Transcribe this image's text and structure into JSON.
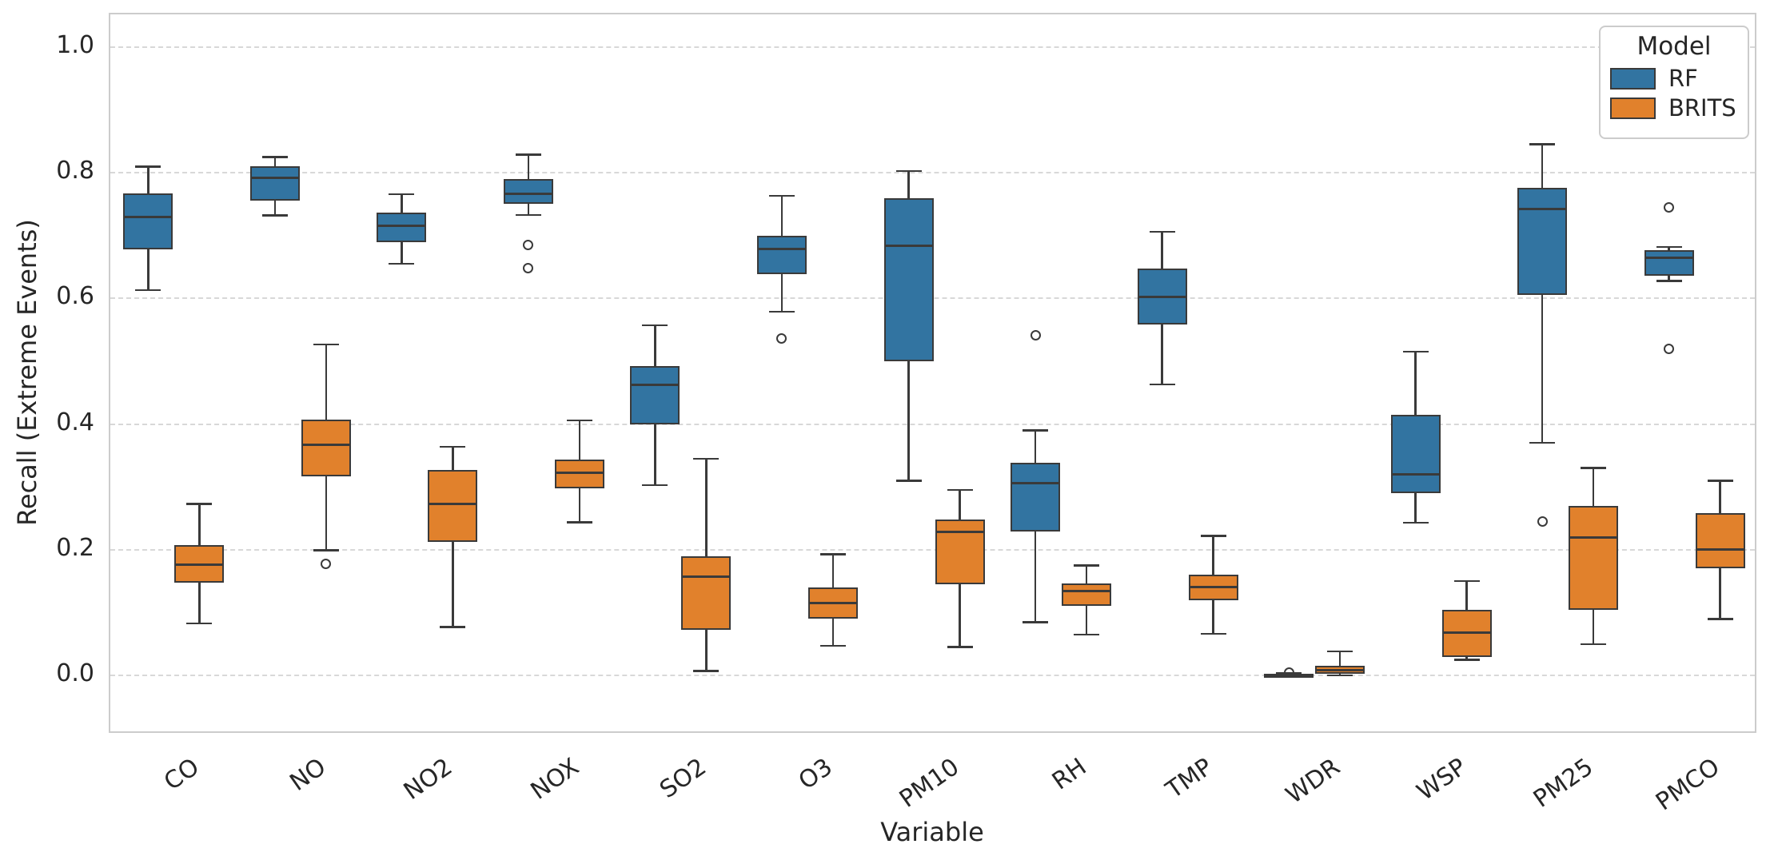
{
  "chart_data": {
    "type": "boxplot",
    "xlabel": "Variable",
    "ylabel": "Recall (Extreme Events)",
    "categories": [
      "CO",
      "NO",
      "NO2",
      "NOX",
      "SO2",
      "O3",
      "PM10",
      "RH",
      "TMP",
      "WDR",
      "WSP",
      "PM25",
      "PMCO"
    ],
    "ytick_values": [
      0.0,
      0.2,
      0.4,
      0.6,
      0.8,
      1.0
    ],
    "ytick_labels": [
      "0.0",
      "0.2",
      "0.4",
      "0.6",
      "0.8",
      "1.0"
    ],
    "ylim": [
      -0.094,
      1.052
    ],
    "grid": "dashed-horizontal",
    "legend": {
      "title": "Model",
      "position": "top-right",
      "entries": [
        {
          "label": "RF",
          "color": "#3274a1"
        },
        {
          "label": "BRITS",
          "color": "#e1812c"
        }
      ]
    },
    "series": [
      {
        "name": "RF",
        "color": "#3274a1",
        "boxes": [
          {
            "category": "CO",
            "whislo": 0.613,
            "q1": 0.678,
            "med": 0.73,
            "q3": 0.767,
            "whishi": 0.81,
            "outliers": []
          },
          {
            "category": "NO",
            "whislo": 0.732,
            "q1": 0.756,
            "med": 0.792,
            "q3": 0.81,
            "whishi": 0.825,
            "outliers": []
          },
          {
            "category": "NO2",
            "whislo": 0.655,
            "q1": 0.69,
            "med": 0.716,
            "q3": 0.737,
            "whishi": 0.766,
            "outliers": []
          },
          {
            "category": "NOX",
            "whislo": 0.733,
            "q1": 0.75,
            "med": 0.766,
            "q3": 0.79,
            "whishi": 0.829,
            "outliers": [
              0.685,
              0.648
            ]
          },
          {
            "category": "SO2",
            "whislo": 0.303,
            "q1": 0.4,
            "med": 0.462,
            "q3": 0.492,
            "whishi": 0.557,
            "outliers": []
          },
          {
            "category": "O3",
            "whislo": 0.579,
            "q1": 0.638,
            "med": 0.679,
            "q3": 0.7,
            "whishi": 0.763,
            "outliers": [
              0.536
            ]
          },
          {
            "category": "PM10",
            "whislo": 0.31,
            "q1": 0.5,
            "med": 0.684,
            "q3": 0.759,
            "whishi": 0.803,
            "outliers": []
          },
          {
            "category": "RH",
            "whislo": 0.085,
            "q1": 0.229,
            "med": 0.306,
            "q3": 0.338,
            "whishi": 0.39,
            "outliers": [
              0.541
            ]
          },
          {
            "category": "TMP",
            "whislo": 0.463,
            "q1": 0.558,
            "med": 0.603,
            "q3": 0.647,
            "whishi": 0.706,
            "outliers": []
          },
          {
            "category": "WDR",
            "whislo": 0.0,
            "q1": 0.0,
            "med": 0.001,
            "q3": 0.002,
            "whishi": 0.003,
            "outliers": [
              0.004
            ]
          },
          {
            "category": "WSP",
            "whislo": 0.243,
            "q1": 0.29,
            "med": 0.32,
            "q3": 0.415,
            "whishi": 0.515,
            "outliers": []
          },
          {
            "category": "PM25",
            "whislo": 0.37,
            "q1": 0.605,
            "med": 0.742,
            "q3": 0.776,
            "whishi": 0.845,
            "outliers": [
              0.245
            ]
          },
          {
            "category": "PMCO",
            "whislo": 0.628,
            "q1": 0.636,
            "med": 0.665,
            "q3": 0.677,
            "whishi": 0.682,
            "outliers": [
              0.745,
              0.52
            ]
          }
        ]
      },
      {
        "name": "BRITS",
        "color": "#e1812c",
        "boxes": [
          {
            "category": "CO",
            "whislo": 0.083,
            "q1": 0.148,
            "med": 0.176,
            "q3": 0.208,
            "whishi": 0.273,
            "outliers": []
          },
          {
            "category": "NO",
            "whislo": 0.199,
            "q1": 0.317,
            "med": 0.367,
            "q3": 0.407,
            "whishi": 0.527,
            "outliers": [
              0.177
            ]
          },
          {
            "category": "NO2",
            "whislo": 0.077,
            "q1": 0.213,
            "med": 0.273,
            "q3": 0.327,
            "whishi": 0.364,
            "outliers": []
          },
          {
            "category": "NOX",
            "whislo": 0.244,
            "q1": 0.298,
            "med": 0.322,
            "q3": 0.344,
            "whishi": 0.406,
            "outliers": []
          },
          {
            "category": "SO2",
            "whislo": 0.007,
            "q1": 0.072,
            "med": 0.157,
            "q3": 0.19,
            "whishi": 0.345,
            "outliers": []
          },
          {
            "category": "O3",
            "whislo": 0.047,
            "q1": 0.09,
            "med": 0.115,
            "q3": 0.14,
            "whishi": 0.193,
            "outliers": []
          },
          {
            "category": "PM10",
            "whislo": 0.045,
            "q1": 0.145,
            "med": 0.229,
            "q3": 0.248,
            "whishi": 0.295,
            "outliers": []
          },
          {
            "category": "RH",
            "whislo": 0.065,
            "q1": 0.111,
            "med": 0.134,
            "q3": 0.146,
            "whishi": 0.175,
            "outliers": []
          },
          {
            "category": "TMP",
            "whislo": 0.066,
            "q1": 0.12,
            "med": 0.141,
            "q3": 0.161,
            "whishi": 0.222,
            "outliers": []
          },
          {
            "category": "WDR",
            "whislo": 0.0,
            "q1": 0.003,
            "med": 0.008,
            "q3": 0.015,
            "whishi": 0.038,
            "outliers": []
          },
          {
            "category": "WSP",
            "whislo": 0.025,
            "q1": 0.03,
            "med": 0.068,
            "q3": 0.104,
            "whishi": 0.15,
            "outliers": []
          },
          {
            "category": "PM25",
            "whislo": 0.05,
            "q1": 0.105,
            "med": 0.22,
            "q3": 0.27,
            "whishi": 0.33,
            "outliers": []
          },
          {
            "category": "PMCO",
            "whislo": 0.09,
            "q1": 0.17,
            "med": 0.2,
            "q3": 0.258,
            "whishi": 0.31,
            "outliers": []
          }
        ]
      }
    ]
  }
}
